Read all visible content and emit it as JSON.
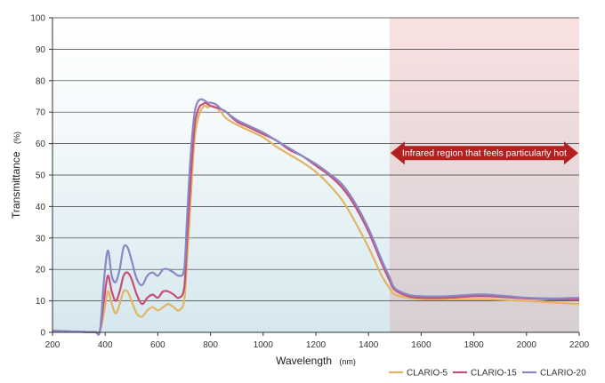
{
  "chart_data": {
    "type": "line",
    "xlabel": "Wavelength",
    "xlabel_unit": "(nm)",
    "ylabel": "Transmittance",
    "ylabel_unit": "(%)",
    "xlim": [
      200,
      2200
    ],
    "ylim": [
      0,
      100
    ],
    "x_ticks": [
      200,
      400,
      600,
      800,
      1000,
      1200,
      1400,
      1600,
      1800,
      2000,
      2200
    ],
    "y_ticks": [
      0,
      10,
      20,
      30,
      40,
      50,
      60,
      70,
      80,
      90,
      100
    ],
    "grid": "horizontal",
    "legend_position": "bottom-right",
    "annotation": {
      "text": "Infrared region that feels particularly hot",
      "x_start": 1480,
      "x_end": 2200,
      "color": "#b22020"
    },
    "series": [
      {
        "name": "CLARIO-5",
        "color": "#e2b463",
        "x": [
          200,
          300,
          360,
          380,
          395,
          410,
          425,
          440,
          455,
          470,
          485,
          500,
          520,
          540,
          560,
          580,
          600,
          620,
          640,
          660,
          680,
          700,
          710,
          720,
          730,
          740,
          750,
          760,
          770,
          780,
          790,
          800,
          820,
          840,
          860,
          900,
          950,
          1000,
          1050,
          1100,
          1150,
          1200,
          1250,
          1300,
          1350,
          1400,
          1450,
          1480,
          1500,
          1550,
          1600,
          1700,
          1800,
          1850,
          1900,
          2000,
          2100,
          2200
        ],
        "y": [
          0.5,
          0.2,
          0.1,
          0.5,
          6,
          13,
          9,
          6,
          9,
          13,
          13,
          10,
          6,
          5,
          7,
          8,
          7,
          8,
          9,
          8,
          7,
          10,
          22,
          35,
          50,
          62,
          67,
          70,
          71.5,
          72,
          71.5,
          72,
          71.5,
          70,
          68,
          66,
          64,
          62,
          59,
          56.5,
          54,
          51,
          47,
          42,
          35,
          27,
          18,
          14,
          12,
          11,
          10.5,
          10.5,
          10.5,
          10.5,
          10.3,
          10,
          9.5,
          9
        ]
      },
      {
        "name": "CLARIO-15",
        "color": "#c94e74",
        "x": [
          200,
          300,
          360,
          380,
          395,
          410,
          425,
          440,
          455,
          470,
          485,
          500,
          520,
          540,
          560,
          580,
          600,
          620,
          640,
          660,
          680,
          700,
          710,
          720,
          730,
          740,
          750,
          760,
          770,
          780,
          790,
          800,
          820,
          840,
          860,
          900,
          950,
          1000,
          1050,
          1100,
          1150,
          1200,
          1250,
          1300,
          1350,
          1400,
          1450,
          1480,
          1500,
          1550,
          1600,
          1700,
          1800,
          1850,
          1900,
          2000,
          2100,
          2200
        ],
        "y": [
          0.5,
          0.2,
          0.1,
          0.5,
          10,
          18,
          13,
          10,
          13,
          18,
          19,
          17,
          12,
          9,
          11,
          12,
          11,
          13,
          13,
          12,
          11,
          14,
          28,
          42,
          56,
          66,
          70,
          72,
          72.5,
          73,
          72.5,
          72,
          71.5,
          71,
          70,
          67,
          65,
          63,
          61,
          58,
          56,
          53,
          50,
          46,
          40,
          32,
          22,
          16.5,
          13.5,
          11.5,
          11,
          11,
          11.5,
          11.5,
          11.3,
          10.8,
          10.5,
          10.5
        ]
      },
      {
        "name": "CLARIO-20",
        "color": "#8b86c4",
        "x": [
          200,
          300,
          360,
          380,
          395,
          410,
          425,
          440,
          455,
          470,
          485,
          500,
          520,
          540,
          560,
          580,
          600,
          620,
          640,
          660,
          680,
          700,
          710,
          720,
          730,
          740,
          750,
          760,
          770,
          780,
          790,
          800,
          820,
          840,
          860,
          900,
          950,
          1000,
          1050,
          1100,
          1150,
          1200,
          1250,
          1300,
          1350,
          1400,
          1450,
          1480,
          1500,
          1550,
          1600,
          1700,
          1800,
          1850,
          1900,
          2000,
          2100,
          2200
        ],
        "y": [
          0.5,
          0.2,
          0.1,
          0.5,
          16,
          26,
          18,
          16,
          20,
          27,
          27,
          23,
          17,
          15,
          18,
          19,
          18,
          20,
          20,
          19,
          18,
          20,
          35,
          50,
          62,
          70,
          73,
          74,
          74,
          73.5,
          73,
          73,
          72.5,
          71,
          70,
          67.5,
          65.5,
          63.5,
          61,
          58.5,
          56,
          53.5,
          50.5,
          47,
          41,
          33,
          23,
          17.5,
          14,
          12,
          11.5,
          11.5,
          12,
          12,
          11.7,
          11,
          10.8,
          11
        ]
      }
    ]
  }
}
